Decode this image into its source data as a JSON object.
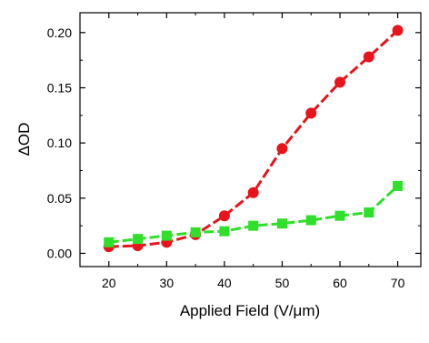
{
  "chart_data": {
    "type": "line",
    "xlabel": "Applied Field (V/μm)",
    "ylabel": "ΔOD",
    "xlim": [
      15,
      74
    ],
    "ylim": [
      -0.012,
      0.218
    ],
    "x_ticks": [
      20,
      30,
      40,
      50,
      60,
      70
    ],
    "x_tick_labels": [
      "20",
      "30",
      "40",
      "50",
      "60",
      "70"
    ],
    "y_ticks": [
      0.0,
      0.05,
      0.1,
      0.15,
      0.2
    ],
    "y_tick_labels": [
      "0.00",
      "0.05",
      "0.10",
      "0.15",
      "0.20"
    ],
    "grid": false,
    "legend": "none",
    "x": [
      20,
      25,
      30,
      35,
      40,
      45,
      50,
      55,
      60,
      65,
      70
    ],
    "series": [
      {
        "marker": "circle",
        "line": "dashed",
        "color": "#e8141c",
        "values": [
          0.006,
          0.007,
          0.01,
          0.017,
          0.034,
          0.055,
          0.095,
          0.127,
          0.155,
          0.178,
          0.202
        ]
      },
      {
        "marker": "square",
        "line": "dashed",
        "color": "#2ee02a",
        "values": [
          0.01,
          0.013,
          0.016,
          0.019,
          0.02,
          0.025,
          0.027,
          0.03,
          0.034,
          0.037,
          0.061
        ]
      }
    ]
  }
}
